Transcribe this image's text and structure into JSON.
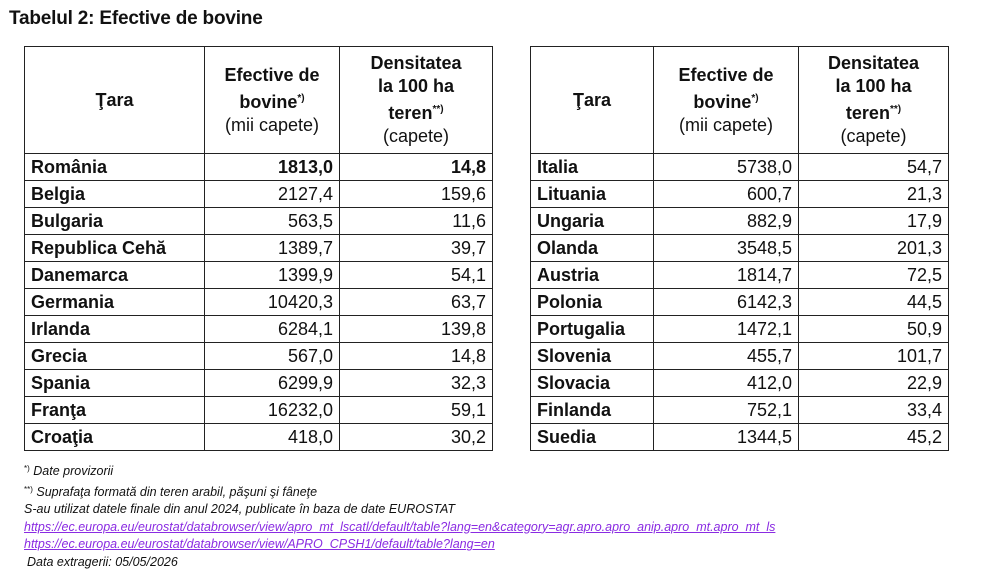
{
  "title": "Tabelul 2: Efective de bovine",
  "headers": {
    "country": "Ţara",
    "effective_l1": "Efective de",
    "effective_l2": "bovine",
    "effective_sup": "*)",
    "effective_unit": "(mii capete)",
    "density_l1": "Densitatea",
    "density_l2": "la 100 ha",
    "density_l3": "teren",
    "density_sup": "**)",
    "density_unit": "(capete)"
  },
  "left_rows": [
    {
      "country": "România",
      "effective": "1813,0",
      "density": "14,8",
      "bold": true
    },
    {
      "country": "Belgia",
      "effective": "2127,4",
      "density": "159,6"
    },
    {
      "country": "Bulgaria",
      "effective": "563,5",
      "density": "11,6"
    },
    {
      "country": "Republica Cehă",
      "effective": "1389,7",
      "density": "39,7"
    },
    {
      "country": "Danemarca",
      "effective": "1399,9",
      "density": "54,1"
    },
    {
      "country": "Germania",
      "effective": "10420,3",
      "density": "63,7"
    },
    {
      "country": "Irlanda",
      "effective": "6284,1",
      "density": "139,8"
    },
    {
      "country": "Grecia",
      "effective": "567,0",
      "density": "14,8"
    },
    {
      "country": "Spania",
      "effective": "6299,9",
      "density": "32,3"
    },
    {
      "country": "Franţa",
      "effective": "16232,0",
      "density": "59,1"
    },
    {
      "country": "Croaţia",
      "effective": "418,0",
      "density": "30,2"
    }
  ],
  "right_rows": [
    {
      "country": "Italia",
      "effective": "5738,0",
      "density": "54,7"
    },
    {
      "country": "Lituania",
      "effective": "600,7",
      "density": "21,3"
    },
    {
      "country": "Ungaria",
      "effective": "882,9",
      "density": "17,9"
    },
    {
      "country": "Olanda",
      "effective": "3548,5",
      "density": "201,3"
    },
    {
      "country": "Austria",
      "effective": "1814,7",
      "density": "72,5"
    },
    {
      "country": "Polonia",
      "effective": "6142,3",
      "density": "44,5"
    },
    {
      "country": "Portugalia",
      "effective": "1472,1",
      "density": "50,9"
    },
    {
      "country": "Slovenia",
      "effective": "455,7",
      "density": "101,7"
    },
    {
      "country": "Slovacia",
      "effective": "412,0",
      "density": "22,9"
    },
    {
      "country": "Finlanda",
      "effective": "752,1",
      "density": "33,4"
    },
    {
      "country": "Suedia",
      "effective": "1344,5",
      "density": "45,2"
    }
  ],
  "notes": {
    "note1_mark": "*)",
    "note1": "Date provizorii",
    "note2_mark": "**)",
    "note2": "Suprafaţa formată din teren arabil, păşuni şi fâneţe",
    "source": "S-au utilizat datele finale din anul 2024, publicate în baza de date EUROSTAT",
    "link1": "https://ec.europa.eu/eurostat/databrowser/view/apro_mt_lscatl/default/table?lang=en&category=agr.apro.apro_anip.apro_mt.apro_mt_ls",
    "link2": "https://ec.europa.eu/eurostat/databrowser/view/APRO_CPSH1/default/table?lang=en",
    "extract_date": "Data extragerii: 05/05/2026"
  }
}
